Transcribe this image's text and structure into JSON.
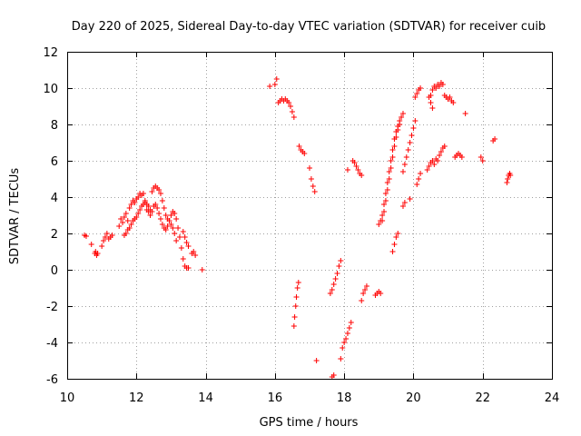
{
  "chart_data": {
    "type": "scatter",
    "title": "Day 220 of 2025, Sidereal Day-to-day VTEC variation (SDTVAR) for receiver cuib",
    "xlabel": "GPS time / hours",
    "ylabel": "SDTVAR / TECUs",
    "xlim": [
      10,
      24
    ],
    "ylim": [
      -6,
      12
    ],
    "xticks": [
      "10",
      "12",
      "14",
      "16",
      "18",
      "20",
      "22",
      "24"
    ],
    "yticks": [
      "-6",
      "-4",
      "-2",
      "0",
      "2",
      "4",
      "6",
      "8",
      "10",
      "12"
    ],
    "grid": true,
    "marker": "+",
    "color": "#ff0000",
    "series": [
      {
        "name": "SDTVAR",
        "points": [
          [
            10.5,
            1.9
          ],
          [
            10.55,
            1.85
          ],
          [
            10.7,
            1.4
          ],
          [
            10.8,
            0.9
          ],
          [
            10.82,
            1.0
          ],
          [
            10.85,
            0.8
          ],
          [
            10.88,
            0.9
          ],
          [
            11.0,
            1.3
          ],
          [
            11.05,
            1.6
          ],
          [
            11.1,
            1.8
          ],
          [
            11.15,
            2.0
          ],
          [
            11.2,
            1.7
          ],
          [
            11.25,
            1.8
          ],
          [
            11.3,
            1.9
          ],
          [
            11.5,
            2.4
          ],
          [
            11.55,
            2.8
          ],
          [
            11.6,
            2.6
          ],
          [
            11.65,
            2.9
          ],
          [
            11.7,
            3.1
          ],
          [
            11.75,
            2.7
          ],
          [
            11.8,
            3.4
          ],
          [
            11.85,
            3.6
          ],
          [
            11.9,
            3.8
          ],
          [
            11.95,
            3.7
          ],
          [
            12.0,
            3.9
          ],
          [
            12.05,
            4.0
          ],
          [
            12.1,
            4.2
          ],
          [
            12.15,
            4.1
          ],
          [
            12.2,
            4.2
          ],
          [
            12.25,
            3.8
          ],
          [
            12.3,
            3.6
          ],
          [
            12.35,
            3.5
          ],
          [
            12.4,
            3.3
          ],
          [
            11.65,
            1.9
          ],
          [
            11.7,
            2.0
          ],
          [
            11.75,
            2.2
          ],
          [
            11.8,
            2.3
          ],
          [
            11.85,
            2.5
          ],
          [
            11.9,
            2.7
          ],
          [
            11.95,
            2.8
          ],
          [
            12.0,
            2.9
          ],
          [
            12.05,
            3.1
          ],
          [
            12.1,
            3.3
          ],
          [
            12.15,
            3.5
          ],
          [
            12.2,
            3.6
          ],
          [
            12.25,
            3.7
          ],
          [
            12.45,
            4.3
          ],
          [
            12.5,
            4.5
          ],
          [
            12.55,
            4.6
          ],
          [
            12.6,
            4.5
          ],
          [
            12.65,
            4.4
          ],
          [
            12.7,
            4.2
          ],
          [
            12.75,
            3.8
          ],
          [
            12.8,
            3.4
          ],
          [
            12.85,
            3.0
          ],
          [
            12.9,
            2.8
          ],
          [
            12.45,
            3.2
          ],
          [
            12.5,
            3.5
          ],
          [
            12.55,
            3.6
          ],
          [
            12.6,
            3.4
          ],
          [
            12.65,
            3.1
          ],
          [
            12.7,
            2.8
          ],
          [
            12.75,
            2.5
          ],
          [
            12.8,
            2.3
          ],
          [
            12.85,
            2.2
          ],
          [
            12.9,
            2.4
          ],
          [
            12.3,
            3.3
          ],
          [
            12.35,
            3.2
          ],
          [
            12.4,
            3.0
          ],
          [
            12.95,
            2.7
          ],
          [
            13.0,
            3.0
          ],
          [
            13.05,
            3.2
          ],
          [
            13.1,
            3.1
          ],
          [
            13.15,
            2.8
          ],
          [
            13.2,
            2.3
          ],
          [
            13.25,
            1.8
          ],
          [
            13.3,
            1.2
          ],
          [
            13.35,
            0.6
          ],
          [
            13.4,
            0.2
          ],
          [
            13.45,
            0.1
          ],
          [
            13.5,
            0.1
          ],
          [
            13.0,
            2.5
          ],
          [
            13.05,
            2.3
          ],
          [
            13.1,
            2.0
          ],
          [
            13.15,
            1.6
          ],
          [
            13.35,
            2.1
          ],
          [
            13.4,
            1.8
          ],
          [
            13.45,
            1.5
          ],
          [
            13.5,
            1.3
          ],
          [
            13.6,
            0.9
          ],
          [
            13.65,
            1.0
          ],
          [
            13.7,
            0.8
          ],
          [
            13.9,
            0.0
          ],
          [
            15.85,
            10.1
          ],
          [
            16.0,
            10.2
          ],
          [
            16.05,
            10.5
          ],
          [
            16.1,
            9.2
          ],
          [
            16.15,
            9.3
          ],
          [
            16.2,
            9.4
          ],
          [
            16.25,
            9.3
          ],
          [
            16.3,
            9.4
          ],
          [
            16.35,
            9.3
          ],
          [
            16.4,
            9.2
          ],
          [
            16.45,
            9.0
          ],
          [
            16.5,
            8.7
          ],
          [
            16.55,
            8.4
          ],
          [
            16.55,
            -3.1
          ],
          [
            16.57,
            -2.6
          ],
          [
            16.6,
            -2.0
          ],
          [
            16.62,
            -1.5
          ],
          [
            16.65,
            -1.0
          ],
          [
            16.68,
            -0.7
          ],
          [
            16.7,
            6.8
          ],
          [
            16.75,
            6.6
          ],
          [
            16.8,
            6.5
          ],
          [
            16.85,
            6.4
          ],
          [
            17.0,
            5.6
          ],
          [
            17.05,
            5.0
          ],
          [
            17.1,
            4.6
          ],
          [
            17.15,
            4.3
          ],
          [
            17.2,
            -5.0
          ],
          [
            17.6,
            -1.3
          ],
          [
            17.65,
            -1.1
          ],
          [
            17.7,
            -0.8
          ],
          [
            17.75,
            -0.5
          ],
          [
            17.8,
            -0.2
          ],
          [
            17.85,
            0.2
          ],
          [
            17.9,
            0.5
          ],
          [
            17.65,
            -5.9
          ],
          [
            17.7,
            -5.8
          ],
          [
            17.9,
            -4.9
          ],
          [
            17.95,
            -4.3
          ],
          [
            18.0,
            -4.0
          ],
          [
            18.05,
            -3.8
          ],
          [
            18.1,
            -3.5
          ],
          [
            18.15,
            -3.2
          ],
          [
            18.2,
            -2.9
          ],
          [
            18.1,
            5.5
          ],
          [
            18.25,
            6.0
          ],
          [
            18.3,
            5.9
          ],
          [
            18.35,
            5.7
          ],
          [
            18.4,
            5.5
          ],
          [
            18.45,
            5.3
          ],
          [
            18.5,
            5.2
          ],
          [
            18.5,
            -1.7
          ],
          [
            18.55,
            -1.3
          ],
          [
            18.6,
            -1.1
          ],
          [
            18.65,
            -0.9
          ],
          [
            18.9,
            -1.4
          ],
          [
            18.95,
            -1.3
          ],
          [
            19.0,
            -1.2
          ],
          [
            19.05,
            -1.3
          ],
          [
            19.0,
            2.5
          ],
          [
            19.05,
            2.7
          ],
          [
            19.1,
            3.0
          ],
          [
            19.15,
            3.6
          ],
          [
            19.2,
            4.2
          ],
          [
            19.25,
            4.8
          ],
          [
            19.3,
            5.4
          ],
          [
            19.35,
            6.0
          ],
          [
            19.4,
            6.6
          ],
          [
            19.45,
            7.2
          ],
          [
            19.5,
            7.6
          ],
          [
            19.55,
            7.9
          ],
          [
            19.6,
            8.2
          ],
          [
            19.65,
            8.4
          ],
          [
            19.7,
            8.6
          ],
          [
            19.1,
            2.7
          ],
          [
            19.15,
            3.2
          ],
          [
            19.2,
            3.8
          ],
          [
            19.25,
            4.4
          ],
          [
            19.3,
            5.0
          ],
          [
            19.35,
            5.6
          ],
          [
            19.4,
            6.2
          ],
          [
            19.45,
            6.8
          ],
          [
            19.5,
            7.3
          ],
          [
            19.55,
            7.7
          ],
          [
            19.6,
            8.0
          ],
          [
            19.4,
            1.0
          ],
          [
            19.45,
            1.4
          ],
          [
            19.5,
            1.8
          ],
          [
            19.55,
            2.0
          ],
          [
            19.7,
            3.5
          ],
          [
            19.75,
            3.7
          ],
          [
            19.9,
            3.9
          ],
          [
            19.7,
            5.4
          ],
          [
            19.75,
            5.8
          ],
          [
            19.8,
            6.2
          ],
          [
            19.85,
            6.6
          ],
          [
            19.9,
            7.0
          ],
          [
            19.95,
            7.4
          ],
          [
            20.0,
            7.8
          ],
          [
            20.05,
            8.2
          ],
          [
            20.05,
            9.5
          ],
          [
            20.1,
            9.7
          ],
          [
            20.15,
            9.9
          ],
          [
            20.2,
            10.0
          ],
          [
            20.1,
            4.7
          ],
          [
            20.15,
            5.0
          ],
          [
            20.2,
            5.3
          ],
          [
            20.4,
            5.5
          ],
          [
            20.45,
            5.7
          ],
          [
            20.5,
            5.9
          ],
          [
            20.55,
            6.0
          ],
          [
            20.6,
            5.8
          ],
          [
            20.65,
            6.1
          ],
          [
            20.7,
            6.0
          ],
          [
            20.75,
            6.3
          ],
          [
            20.8,
            6.5
          ],
          [
            20.85,
            6.7
          ],
          [
            20.9,
            6.8
          ],
          [
            20.45,
            9.5
          ],
          [
            20.5,
            9.2
          ],
          [
            20.55,
            8.9
          ],
          [
            20.5,
            9.6
          ],
          [
            20.55,
            9.9
          ],
          [
            20.6,
            10.1
          ],
          [
            20.65,
            10.0
          ],
          [
            20.7,
            10.2
          ],
          [
            20.75,
            10.1
          ],
          [
            20.8,
            10.3
          ],
          [
            20.85,
            10.2
          ],
          [
            20.9,
            9.6
          ],
          [
            20.95,
            9.5
          ],
          [
            21.0,
            9.4
          ],
          [
            21.05,
            9.5
          ],
          [
            21.1,
            9.3
          ],
          [
            21.15,
            9.2
          ],
          [
            21.2,
            6.2
          ],
          [
            21.25,
            6.3
          ],
          [
            21.3,
            6.4
          ],
          [
            21.35,
            6.3
          ],
          [
            21.4,
            6.2
          ],
          [
            21.5,
            8.6
          ],
          [
            21.95,
            6.2
          ],
          [
            22.0,
            6.0
          ],
          [
            22.3,
            7.1
          ],
          [
            22.35,
            7.2
          ],
          [
            22.7,
            4.8
          ],
          [
            22.72,
            5.0
          ],
          [
            22.75,
            5.2
          ],
          [
            22.78,
            5.3
          ],
          [
            22.8,
            5.2
          ]
        ]
      }
    ]
  }
}
